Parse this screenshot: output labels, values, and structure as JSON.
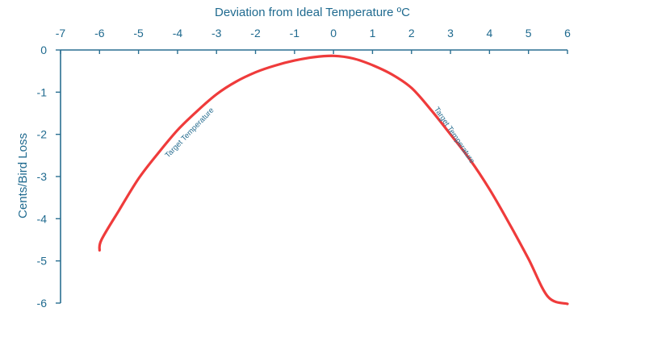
{
  "colors": {
    "axis": "#2a6f91",
    "text": "#1f6a8f",
    "curve": "#ef3b3b",
    "annotation": "#2a6f91"
  },
  "chart_data": {
    "type": "line",
    "title": "",
    "xlabel": "Deviation from Ideal Temperature ºC",
    "ylabel": "Cents/Bird Loss",
    "xlim": [
      -7,
      6
    ],
    "ylim": [
      -6,
      0
    ],
    "x_ticks": [
      "-7",
      "-6",
      "-5",
      "-4",
      "-3",
      "-2",
      "-1",
      "0",
      "1",
      "2",
      "3",
      "4",
      "5",
      "6"
    ],
    "y_ticks": [
      "0",
      "-1",
      "-2",
      "-3",
      "-4",
      "-5",
      "-6"
    ],
    "x_axis_position": "top",
    "grid": false,
    "legend": "none",
    "series": [
      {
        "x": [
          -6.0,
          -5.95,
          -5.5,
          -5.0,
          -4.5,
          -4.0,
          -3.5,
          -3.0,
          -2.5,
          -2.0,
          -1.5,
          -1.0,
          -0.5,
          0.0,
          0.5,
          1.0,
          1.5,
          2.0,
          2.5,
          3.0,
          3.5,
          4.0,
          4.5,
          5.0,
          5.5,
          6.0
        ],
        "values": [
          -4.75,
          -4.5,
          -3.8,
          -3.05,
          -2.45,
          -1.9,
          -1.45,
          -1.05,
          -0.75,
          -0.53,
          -0.37,
          -0.25,
          -0.17,
          -0.14,
          -0.2,
          -0.36,
          -0.58,
          -0.9,
          -1.42,
          -2.0,
          -2.6,
          -3.3,
          -4.1,
          -4.95,
          -5.85,
          -6.02
        ]
      }
    ],
    "annotations": [
      {
        "text": "Target Temperature",
        "x": -3.65,
        "y": -2.0,
        "angle": -46
      },
      {
        "text": "Target Temperature",
        "x": 3.05,
        "y": -2.05,
        "angle": 56
      }
    ]
  }
}
